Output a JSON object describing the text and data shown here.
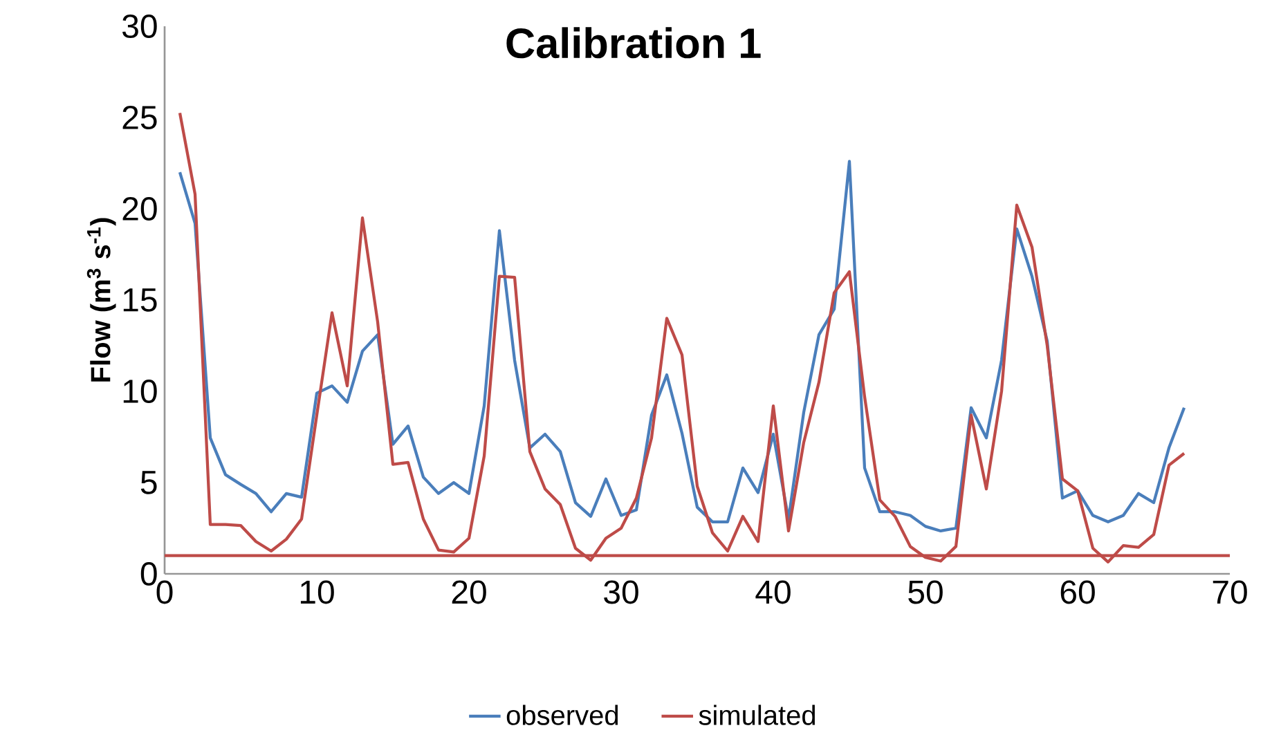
{
  "chart_data": {
    "type": "line",
    "title": "Calibration 1",
    "ylabel": "Flow (m$^{3}$ s$^{-1}$)",
    "xlim": [
      0,
      70
    ],
    "xticks": [
      0,
      10,
      20,
      30,
      40,
      50,
      60,
      70
    ],
    "ylim": [
      0,
      30
    ],
    "yticks": [
      0,
      5,
      10,
      15,
      20,
      25,
      30
    ],
    "grid": false,
    "legend": "bottom",
    "marker": "none",
    "line_style": "solid",
    "x": [
      1,
      2,
      3,
      4,
      5,
      6,
      7,
      8,
      9,
      10,
      11,
      12,
      13,
      14,
      15,
      16,
      17,
      18,
      19,
      20,
      21,
      22,
      23,
      24,
      25,
      26,
      27,
      28,
      29,
      30,
      31,
      32,
      33,
      34,
      35,
      36,
      37,
      38,
      39,
      40,
      41,
      42,
      43,
      44,
      45,
      46,
      47,
      48,
      49,
      50,
      51,
      52,
      53,
      54,
      55,
      56,
      57,
      58,
      59,
      60,
      61,
      62,
      63,
      64,
      65,
      66,
      67
    ],
    "series": [
      {
        "name": "observed",
        "color": "#4a7ebb",
        "values": [
          22.0,
          19.2,
          7.45,
          5.43,
          4.9,
          4.4,
          3.4,
          4.4,
          4.2,
          9.9,
          10.3,
          9.4,
          12.2,
          13.1,
          7.1,
          8.1,
          5.3,
          4.4,
          5.0,
          4.4,
          9.2,
          18.8,
          11.7,
          6.9,
          7.65,
          6.7,
          3.9,
          3.15,
          5.2,
          3.2,
          3.5,
          8.7,
          10.9,
          7.7,
          3.65,
          2.85,
          2.85,
          5.8,
          4.45,
          7.65,
          3.0,
          8.85,
          13.1,
          14.5,
          22.6,
          5.8,
          3.4,
          3.4,
          3.2,
          2.6,
          2.35,
          2.5,
          9.1,
          7.45,
          11.7,
          18.9,
          16.3,
          12.75,
          4.15,
          4.55,
          3.2,
          2.85,
          3.2,
          4.4,
          3.9,
          6.9,
          9.1
        ]
      },
      {
        "name": "simulated",
        "color": "#be4b48",
        "values": [
          25.25,
          20.8,
          2.7,
          2.7,
          2.65,
          1.77,
          1.25,
          1.9,
          3.0,
          8.7,
          14.3,
          10.3,
          19.5,
          13.8,
          6.0,
          6.1,
          3.0,
          1.3,
          1.2,
          1.95,
          6.45,
          16.3,
          16.25,
          6.7,
          4.65,
          3.8,
          1.4,
          0.75,
          1.95,
          2.5,
          4.15,
          7.45,
          14.0,
          12.0,
          4.8,
          2.25,
          1.25,
          3.15,
          1.77,
          9.2,
          2.35,
          7.2,
          10.5,
          15.4,
          16.55,
          9.7,
          4.05,
          3.15,
          1.5,
          0.9,
          0.7,
          1.5,
          8.7,
          4.65,
          10.0,
          20.2,
          17.9,
          12.5,
          5.2,
          4.55,
          1.4,
          0.65,
          1.55,
          1.45,
          2.15,
          5.95,
          6.6
        ]
      }
    ],
    "ref_lines": [
      {
        "axis": "y",
        "value": 1.0,
        "color": "#be4b48"
      }
    ]
  }
}
